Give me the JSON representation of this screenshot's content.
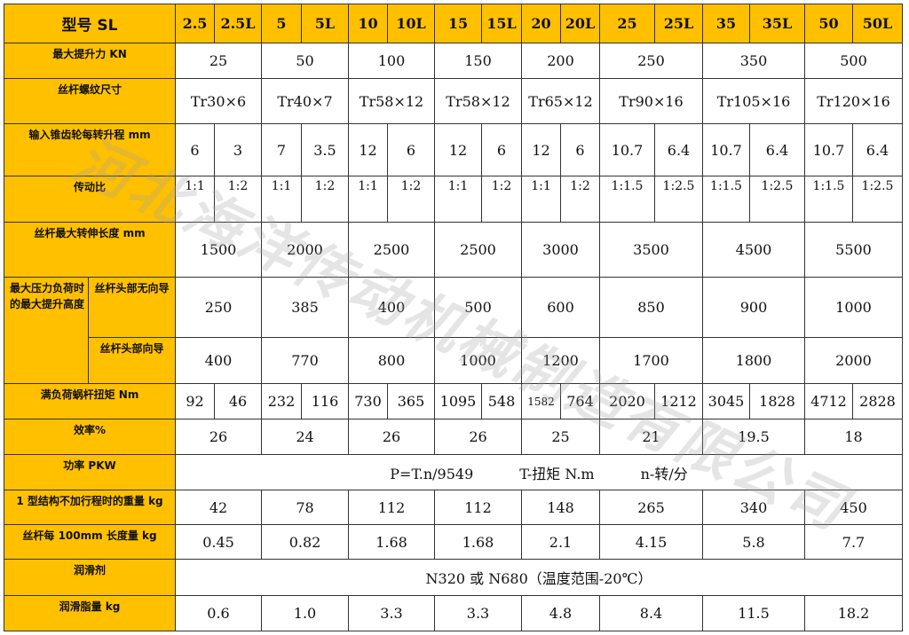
{
  "header": {
    "title": "型号 SL",
    "models": [
      "2.5",
      "2.5L",
      "5",
      "5L",
      "10",
      "10L",
      "15",
      "15L",
      "20",
      "20L",
      "25",
      "25L",
      "35",
      "35L",
      "50",
      "50L"
    ]
  },
  "rows": [
    {
      "label": "最大提升力 KN",
      "type": "merged",
      "values": [
        "25",
        "50",
        "100",
        "150",
        "200",
        "250",
        "350",
        "500"
      ]
    },
    {
      "label": "丝杆螺纹尺寸",
      "type": "merged",
      "values": [
        "Tr30×6",
        "Tr40×7",
        "Tr58×12",
        "Tr58×12",
        "Tr65×12",
        "Tr90×16",
        "Tr105×16",
        "Tr120×16"
      ]
    },
    {
      "label": "输入锥齿轮每转升程 mm",
      "type": "pair",
      "values": [
        "6",
        "3",
        "7",
        "3.5",
        "12",
        "6",
        "12",
        "6",
        "12",
        "6",
        "10.7",
        "6.4",
        "10.7",
        "6.4",
        "10.7",
        "6.4"
      ]
    },
    {
      "label": "传动比",
      "type": "pair",
      "values": [
        "1:1",
        "1:2",
        "1:1",
        "1:2",
        "1:1",
        "1:2",
        "1:1",
        "1:2",
        "1:1",
        "1:2",
        "1:1.5",
        "1:2.5",
        "1:1.5",
        "1:2.5",
        "1:1.5",
        "1:2.5"
      ]
    },
    {
      "label": "丝杆最大转伸长度 mm",
      "type": "merged",
      "values": [
        "1500",
        "2000",
        "2500",
        "2500",
        "3000",
        "3500",
        "4500",
        "5500"
      ]
    },
    {
      "label": "最大压力负荷时的最大提升高度",
      "sublabel": "丝杆头部无向导",
      "type": "merged",
      "values": [
        "250",
        "385",
        "400",
        "500",
        "600",
        "850",
        "900",
        "1000"
      ]
    },
    {
      "sublabel": "丝杆头部向导",
      "type": "merged",
      "values": [
        "400",
        "770",
        "800",
        "1000",
        "1200",
        "1700",
        "1800",
        "2000"
      ]
    },
    {
      "label": "满负荷蜗杆扭矩 Nm",
      "type": "pair",
      "values": [
        "92",
        "46",
        "232",
        "116",
        "730",
        "365",
        "1095",
        "548",
        "1582",
        "764",
        "2020",
        "1212",
        "3045",
        "1828",
        "4712",
        "2828"
      ]
    },
    {
      "label": "效率%",
      "type": "merged",
      "values": [
        "26",
        "24",
        "26",
        "26",
        "25",
        "21",
        "19.5",
        "18"
      ]
    },
    {
      "label": "功率 PKW",
      "type": "full",
      "parts": [
        "P=T.n/9549",
        "T-扭矩 N.m",
        "n-转/分"
      ]
    },
    {
      "label": "1 型结构不加行程时的重量 kg",
      "type": "merged",
      "values": [
        "42",
        "78",
        "112",
        "112",
        "148",
        "265",
        "340",
        "450"
      ]
    },
    {
      "label": "丝杆每 100mm 长度量 kg",
      "type": "merged",
      "values": [
        "0.45",
        "0.82",
        "1.68",
        "1.68",
        "2.1",
        "4.15",
        "5.8",
        "7.7"
      ]
    },
    {
      "label": "润滑剂",
      "type": "full",
      "parts": [
        "N320 或 N680（温度范围-20℃）"
      ]
    },
    {
      "label": "润滑脂量 kg",
      "type": "merged",
      "values": [
        "0.6",
        "1.0",
        "3.3",
        "3.3",
        "4.8",
        "8.4",
        "11.5",
        "18.2"
      ]
    }
  ],
  "watermark": "河北海洋传动机械制造有限公司",
  "colors": {
    "header_bg": "#FFC000",
    "border": "#333333"
  }
}
